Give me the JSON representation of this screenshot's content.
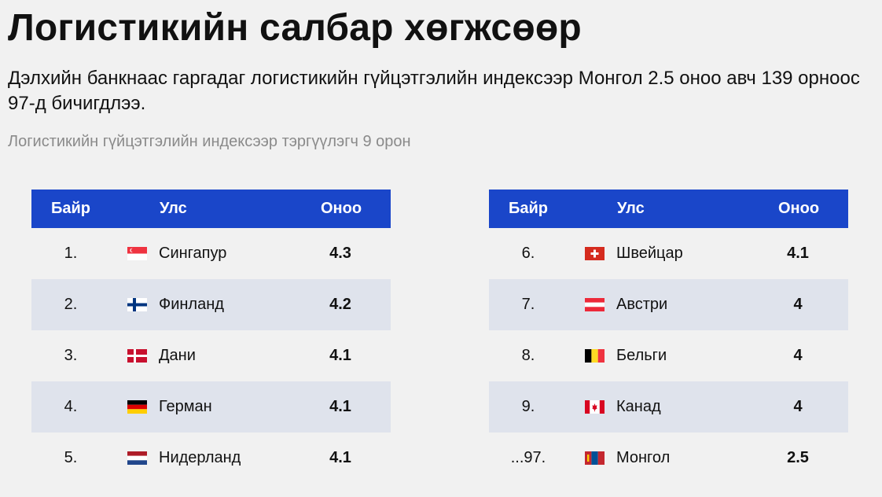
{
  "title": "Логистикийн салбар хөгжсөөр",
  "subtitle": "Дэлхийн банкнаас гаргадаг логистикийн гүйцэтгэлийн индексээр Монгол 2.5 оноо авч 139 орноос 97-д бичигдлээ.",
  "caption": "Логистикийн гүйцэтгэлийн индексээр тэргүүлэгч 9 орон",
  "table_headers": {
    "rank": "Байр",
    "country": "Улс",
    "score": "Оноо"
  },
  "left_rows": [
    {
      "rank": "1.",
      "country": "Сингапур",
      "score": "4.3",
      "flag": "singapore-flag-icon"
    },
    {
      "rank": "2.",
      "country": "Финланд",
      "score": "4.2",
      "flag": "finland-flag-icon"
    },
    {
      "rank": "3.",
      "country": "Дани",
      "score": "4.1",
      "flag": "denmark-flag-icon"
    },
    {
      "rank": "4.",
      "country": "Герман",
      "score": "4.1",
      "flag": "germany-flag-icon"
    },
    {
      "rank": "5.",
      "country": "Нидерланд",
      "score": "4.1",
      "flag": "netherlands-flag-icon"
    }
  ],
  "right_rows": [
    {
      "rank": "6.",
      "country": "Швейцар",
      "score": "4.1",
      "flag": "switzerland-flag-icon"
    },
    {
      "rank": "7.",
      "country": "Австри",
      "score": "4",
      "flag": "austria-flag-icon"
    },
    {
      "rank": "8.",
      "country": "Бельги",
      "score": "4",
      "flag": "belgium-flag-icon"
    },
    {
      "rank": "9.",
      "country": "Канад",
      "score": "4",
      "flag": "canada-flag-icon"
    },
    {
      "rank": "...97.",
      "country": "Монгол",
      "score": "2.5",
      "flag": "mongolia-flag-icon"
    }
  ],
  "colors": {
    "header_bg": "#1a46c9",
    "alt_row_bg": "#dfe3ec",
    "page_bg": "#f1f1f1"
  }
}
